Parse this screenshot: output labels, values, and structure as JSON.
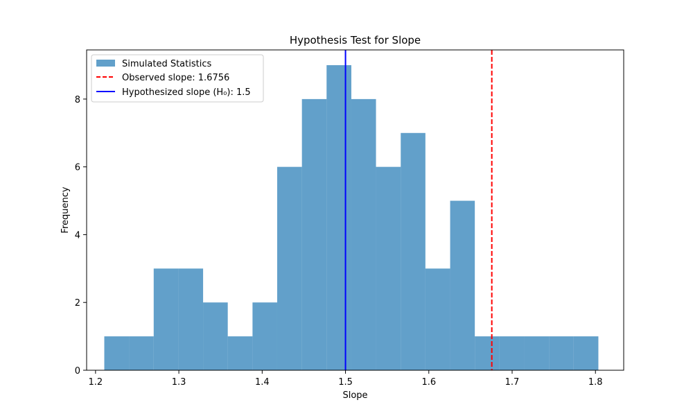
{
  "chart_data": {
    "type": "bar",
    "title": "Hypothesis Test for Slope",
    "xlabel": "Slope",
    "ylabel": "Frequency",
    "xlim": [
      1.1893,
      1.8339
    ],
    "ylim": [
      0,
      9.45
    ],
    "xticks": [
      1.2,
      1.3,
      1.4,
      1.5,
      1.6,
      1.7,
      1.8
    ],
    "xtick_labels": [
      "1.2",
      "1.3",
      "1.4",
      "1.5",
      "1.6",
      "1.7",
      "1.8"
    ],
    "yticks": [
      0,
      2,
      4,
      6,
      8
    ],
    "ytick_labels": [
      "0",
      "2",
      "4",
      "6",
      "8"
    ],
    "bin_edges": [
      1.2105,
      1.2401,
      1.2698,
      1.2994,
      1.3291,
      1.3587,
      1.3884,
      1.418,
      1.4477,
      1.4773,
      1.507,
      1.5366,
      1.5663,
      1.5959,
      1.6256,
      1.6552,
      1.6849,
      1.7145,
      1.7442,
      1.7738,
      1.8035
    ],
    "counts": [
      1,
      1,
      3,
      3,
      2,
      1,
      2,
      6,
      8,
      9,
      8,
      6,
      7,
      3,
      5,
      1,
      1,
      1,
      1,
      1
    ],
    "bar_color": "#1f77b4",
    "bar_alpha": 0.7,
    "observed_slope": 1.6756,
    "observed_color": "#ff0000",
    "hypothesized_slope": 1.5,
    "hypothesized_color": "#0000ff",
    "legend": {
      "position": "upper-left",
      "entries": [
        {
          "label": "Simulated Statistics",
          "kind": "patch"
        },
        {
          "label": "Observed slope: 1.6756",
          "kind": "dashed-line"
        },
        {
          "label": "Hypothesized slope (H₀): 1.5",
          "kind": "solid-line"
        }
      ]
    },
    "grid": false
  }
}
